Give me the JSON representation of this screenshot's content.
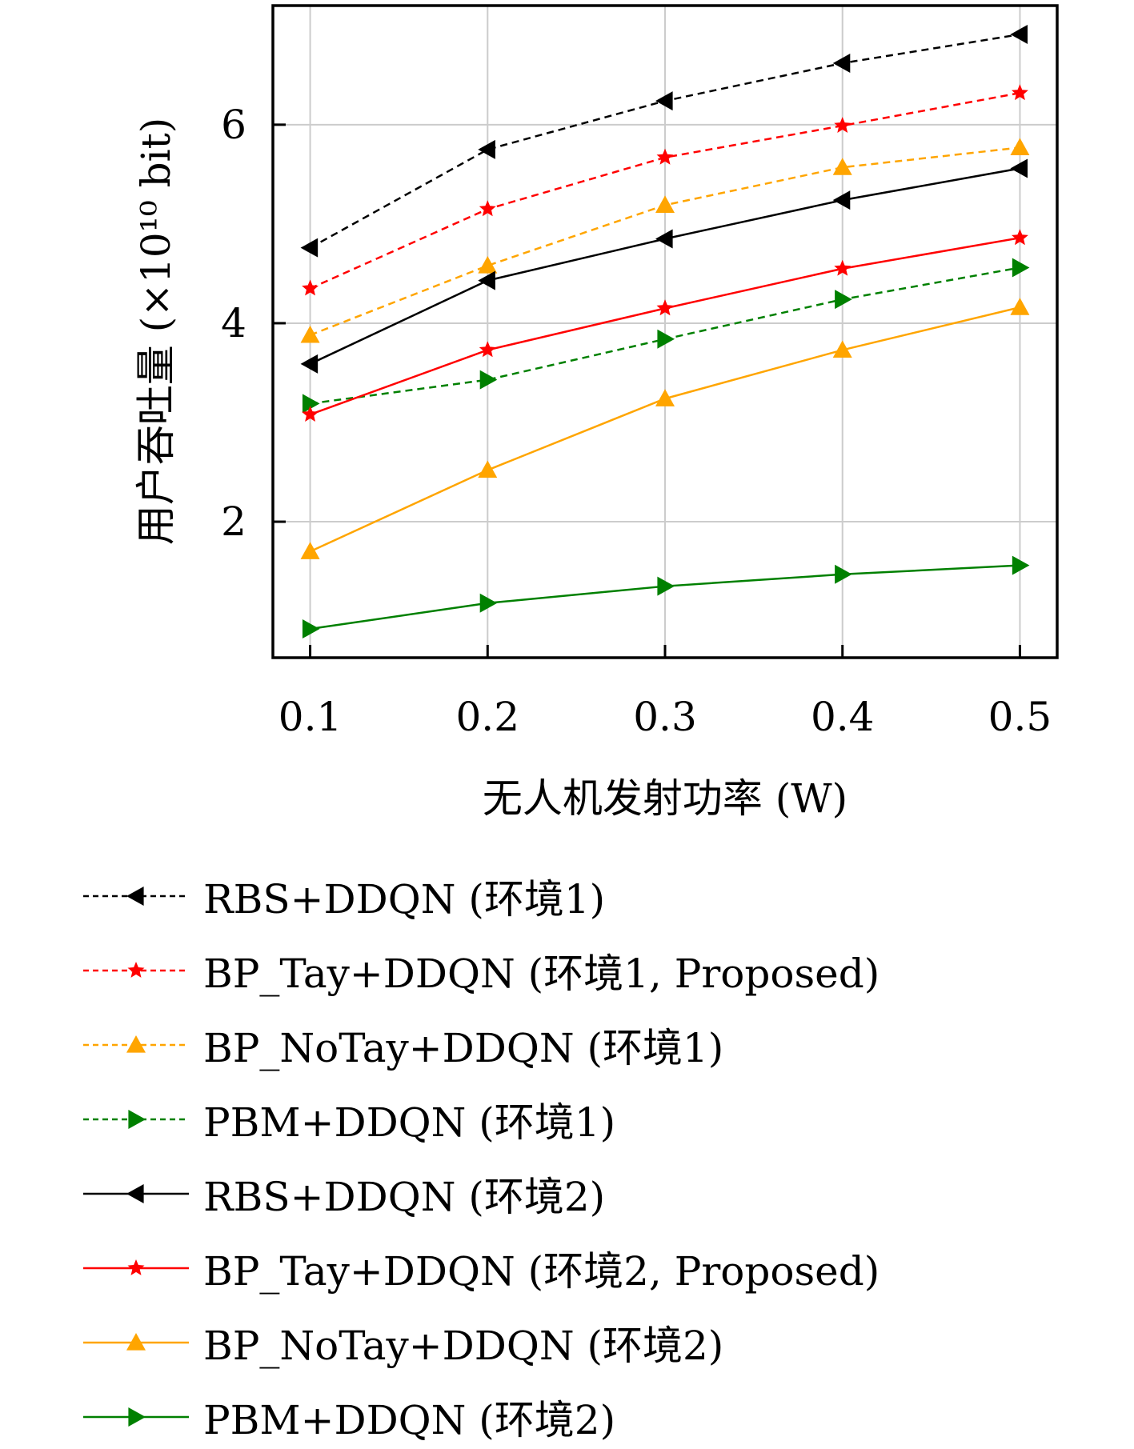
{
  "chart_data": {
    "type": "line",
    "title": "",
    "xlabel": "无人机发射功率 (W)",
    "ylabel": "用户吞吐量 (×10¹⁰ bit)",
    "x": [
      0.1,
      0.2,
      0.3,
      0.4,
      0.5
    ],
    "x_tick_labels": [
      "0.1",
      "0.2",
      "0.3",
      "0.4",
      "0.5"
    ],
    "y_ticks": [
      2,
      4,
      6
    ],
    "y_tick_labels": [
      "2",
      "4",
      "6"
    ],
    "xlim": [
      0.079,
      0.521
    ],
    "ylim": [
      0.63,
      7.2
    ],
    "grid": true,
    "legend_placement": "below",
    "series": [
      {
        "name": "RBS+DDQN (环境1)",
        "color": "#000000",
        "dash": "dashed",
        "marker": "triangle-left",
        "values": [
          4.76,
          5.75,
          6.24,
          6.62,
          6.91
        ]
      },
      {
        "name": "BP_Tay+DDQN (环境1, Proposed)",
        "color": "#ff0000",
        "dash": "dashed",
        "marker": "star",
        "values": [
          4.35,
          5.15,
          5.67,
          5.99,
          6.32
        ]
      },
      {
        "name": "BP_NoTay+DDQN (环境1)",
        "color": "#ffa500",
        "dash": "dashed",
        "marker": "triangle-up",
        "values": [
          3.88,
          4.58,
          5.19,
          5.57,
          5.77
        ]
      },
      {
        "name": "PBM+DDQN (环境1)",
        "color": "#008000",
        "dash": "dashed",
        "marker": "triangle-right",
        "values": [
          3.19,
          3.43,
          3.84,
          4.24,
          4.56
        ]
      },
      {
        "name": "RBS+DDQN (环境2)",
        "color": "#000000",
        "dash": "solid",
        "marker": "triangle-left",
        "values": [
          3.59,
          4.43,
          4.85,
          5.24,
          5.56
        ]
      },
      {
        "name": "BP_Tay+DDQN (环境2, Proposed)",
        "color": "#ff0000",
        "dash": "solid",
        "marker": "star",
        "values": [
          3.08,
          3.73,
          4.15,
          4.55,
          4.86
        ]
      },
      {
        "name": "BP_NoTay+DDQN (环境2)",
        "color": "#ffa500",
        "dash": "solid",
        "marker": "triangle-up",
        "values": [
          1.7,
          2.52,
          3.24,
          3.73,
          4.16
        ]
      },
      {
        "name": "PBM+DDQN (环境2)",
        "color": "#008000",
        "dash": "solid",
        "marker": "triangle-right",
        "values": [
          0.92,
          1.18,
          1.35,
          1.47,
          1.56
        ]
      }
    ]
  }
}
